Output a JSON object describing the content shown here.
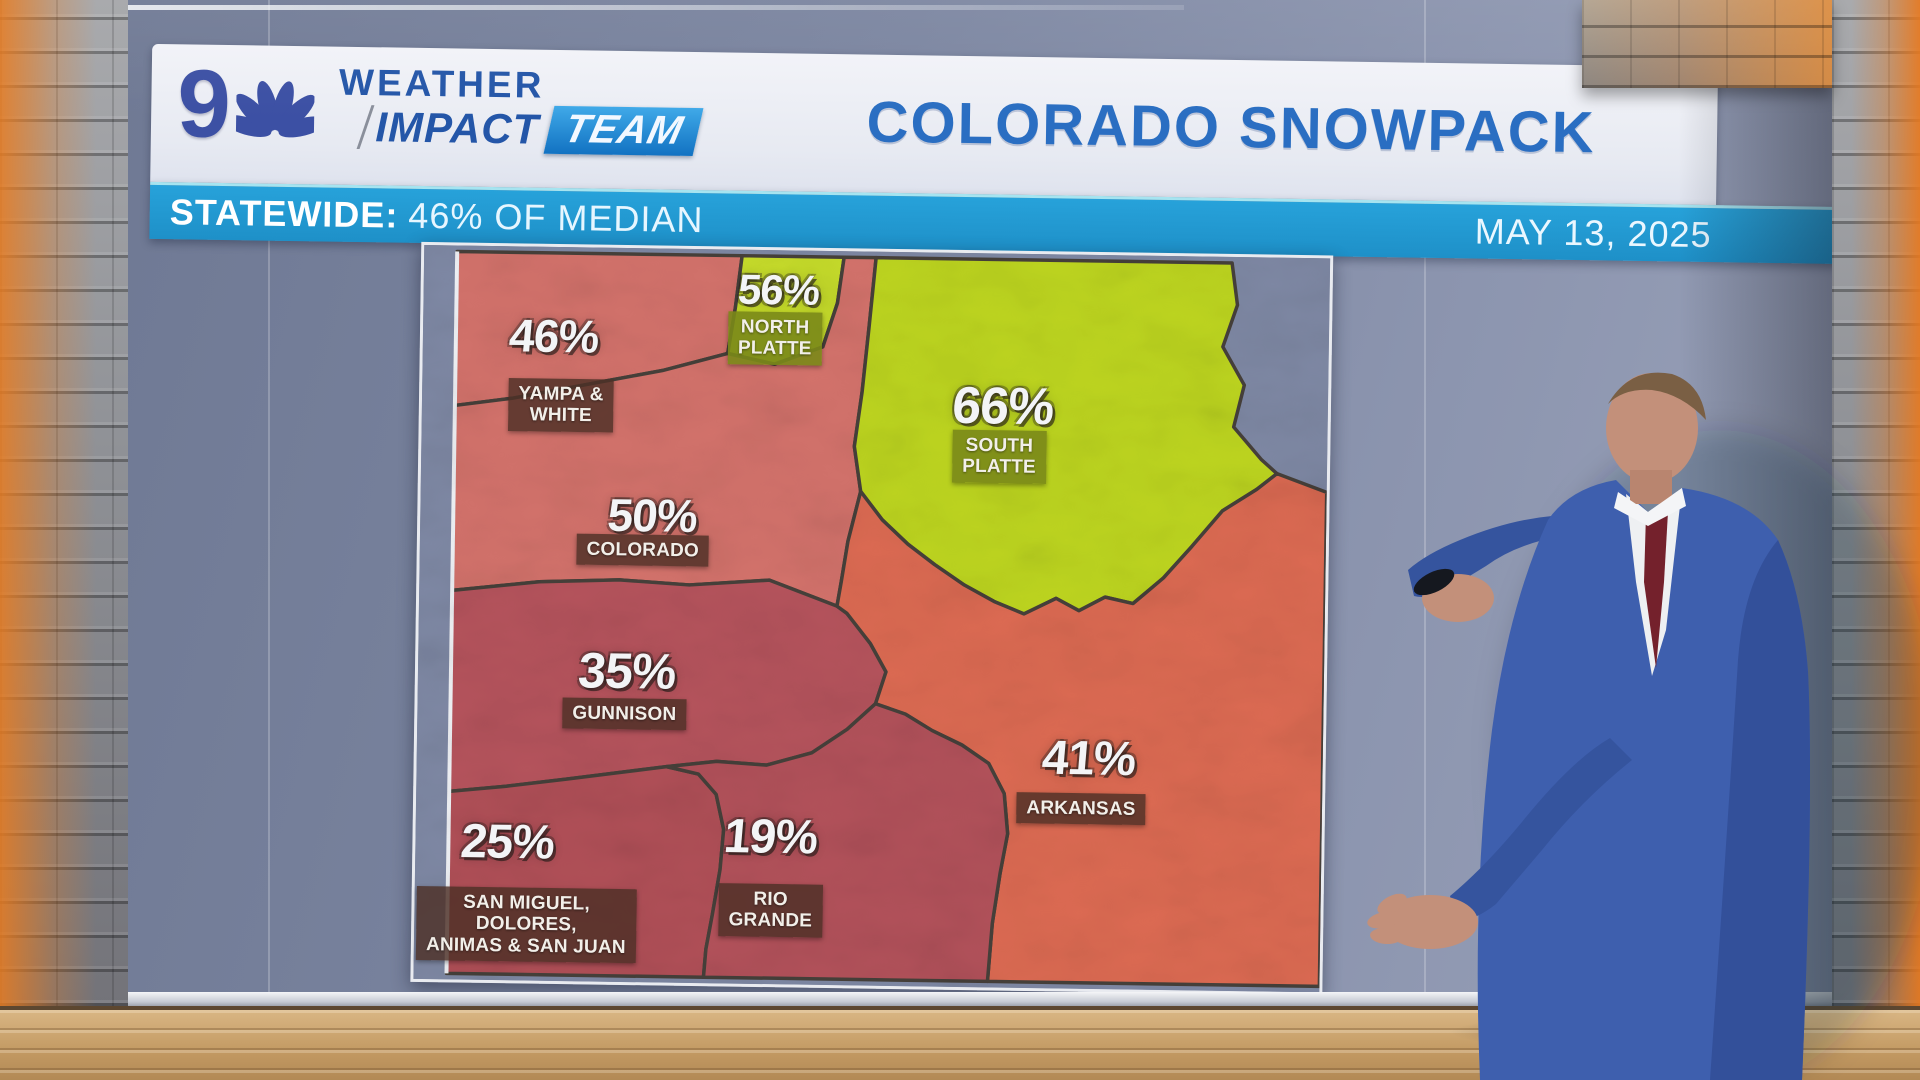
{
  "logo": {
    "station_number": "9",
    "weather": "WEATHER",
    "impact": "IMPACT",
    "team": "TEAM"
  },
  "header": {
    "title": "COLORADO SNOWPACK",
    "statewide_label": "STATEWIDE:",
    "statewide_value": "46% OF MEDIAN",
    "date": "MAY 13, 2025"
  },
  "chart_data": {
    "type": "choropleth-map",
    "title": "COLORADO SNOWPACK",
    "subtitle": "STATEWIDE: 46% OF MEDIAN",
    "date": "MAY 13, 2025",
    "unit": "percent of median snowpack",
    "statewide_pct": 46,
    "basemap_bg": "#7e88a4",
    "legend": "none",
    "regions": [
      {
        "id": "yampa-white",
        "name": "YAMPA & WHITE",
        "label_lines": "YAMPA &\nWHITE",
        "value_pct": 46,
        "display": "46%",
        "color": "#d3726b",
        "label_bg": "rgba(77,47,38,0.82)"
      },
      {
        "id": "north-platte",
        "name": "NORTH PLATTE",
        "label_lines": "NORTH\nPLATTE",
        "value_pct": 56,
        "display": "56%",
        "color": "#c6dc2a",
        "label_bg": "rgba(122,136,24,0.9)"
      },
      {
        "id": "south-platte",
        "name": "SOUTH PLATTE",
        "label_lines": "SOUTH\nPLATTE",
        "value_pct": 66,
        "display": "66%",
        "color": "#bdd51f",
        "label_bg": "rgba(122,136,24,0.9)"
      },
      {
        "id": "colorado",
        "name": "COLORADO",
        "label_lines": "COLORADO",
        "value_pct": 50,
        "display": "50%",
        "color": "#d3726b",
        "label_bg": "rgba(77,47,38,0.82)"
      },
      {
        "id": "gunnison",
        "name": "GUNNISON",
        "label_lines": "GUNNISON",
        "value_pct": 35,
        "display": "35%",
        "color": "#b5535c",
        "label_bg": "rgba(77,47,38,0.82)"
      },
      {
        "id": "arkansas",
        "name": "ARKANSAS",
        "label_lines": "ARKANSAS",
        "value_pct": 41,
        "display": "41%",
        "color": "#dc6a52",
        "label_bg": "rgba(77,47,38,0.82)"
      },
      {
        "id": "san-miguel",
        "name": "SAN MIGUEL, DOLORES, ANIMAS & SAN JUAN",
        "label_lines": "SAN MIGUEL,\nDOLORES,\nANIMAS & SAN JUAN",
        "value_pct": 25,
        "display": "25%",
        "color": "#b04f57",
        "label_bg": "rgba(77,47,38,0.82)"
      },
      {
        "id": "rio-grande",
        "name": "RIO GRANDE",
        "label_lines": "RIO\nGRANDE",
        "value_pct": 19,
        "display": "19%",
        "color": "#b2515a",
        "label_bg": "rgba(77,47,38,0.82)"
      }
    ]
  },
  "colors": {
    "title_blue": "#2a6ec2",
    "bar_blue": "#2097d2",
    "logo_blue": "#3c50a4",
    "team_box_blue": "#1b86d8",
    "suit_blue": "#3e5fae",
    "tie_red": "#74212c"
  }
}
